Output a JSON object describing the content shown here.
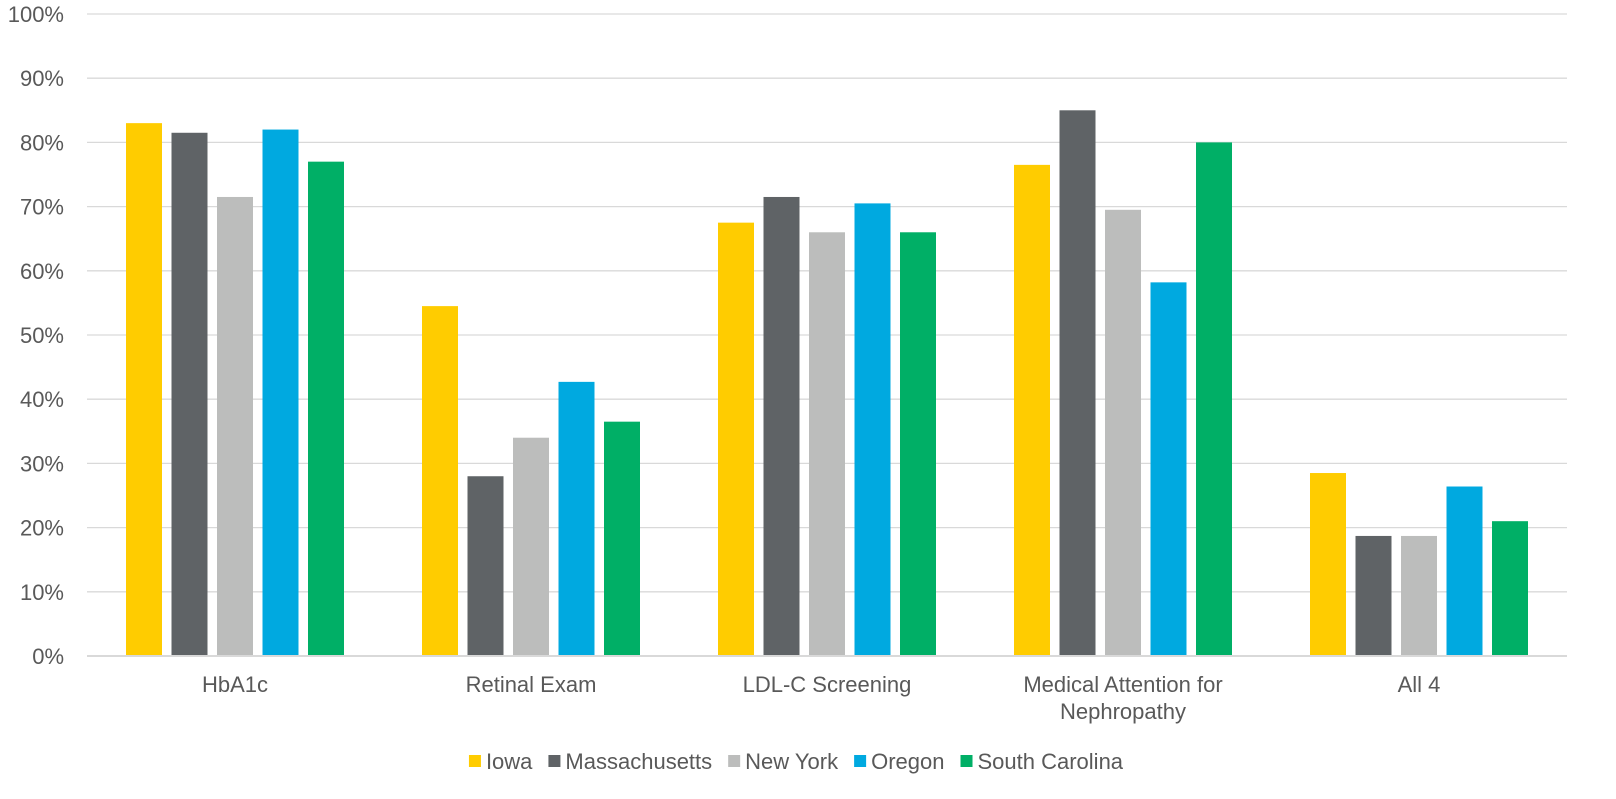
{
  "chart_data": {
    "type": "bar",
    "title": "",
    "xlabel": "",
    "ylabel": "",
    "ylim": [
      0,
      100
    ],
    "yticks": [
      "0%",
      "10%",
      "20%",
      "30%",
      "40%",
      "50%",
      "60%",
      "70%",
      "80%",
      "90%",
      "100%"
    ],
    "grid": true,
    "legend_position": "bottom",
    "categories": [
      [
        "HbA1c"
      ],
      [
        "Retinal Exam"
      ],
      [
        "LDL-C Screening"
      ],
      [
        "Medical Attention for",
        "Nephropathy"
      ],
      [
        "All 4"
      ]
    ],
    "series": [
      {
        "name": "Iowa",
        "color": "#FFCC00",
        "values": [
          83,
          54.5,
          67.5,
          76.5,
          28.5
        ]
      },
      {
        "name": "Massachusetts",
        "color": "#5F6366",
        "values": [
          81.5,
          28,
          71.5,
          85,
          18.7
        ]
      },
      {
        "name": "New York",
        "color": "#BCBDBC",
        "values": [
          71.5,
          34,
          66,
          69.5,
          18.7
        ]
      },
      {
        "name": "Oregon",
        "color": "#00A9E0",
        "values": [
          82,
          42.7,
          70.5,
          58.2,
          26.4
        ]
      },
      {
        "name": "South Carolina",
        "color": "#00AF66",
        "values": [
          77,
          36.5,
          66,
          80,
          21
        ]
      }
    ]
  }
}
